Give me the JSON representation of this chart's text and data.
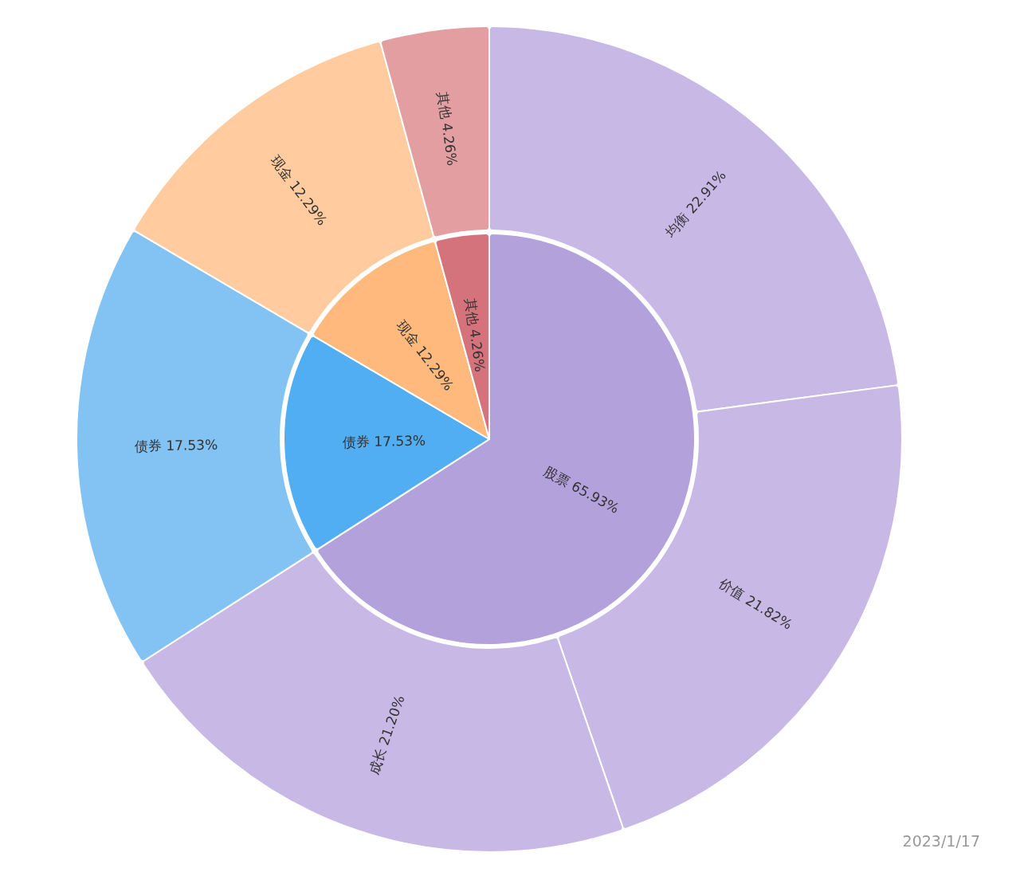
{
  "chart_data": [
    {
      "type": "pie",
      "categories": [
        "股票",
        "债券",
        "现金",
        "其他"
      ],
      "values": [
        65.93,
        17.53,
        12.29,
        4.26
      ],
      "value_labels": [
        "65.93%",
        "17.53%",
        "12.29%",
        "4.26%"
      ],
      "colors": [
        "#b3a1dc",
        "#52aef2",
        "#ffb97d",
        "#d5737d"
      ]
    },
    {
      "type": "donut",
      "categories": [
        "均衡",
        "价值",
        "成长",
        "债券",
        "现金",
        "其他"
      ],
      "values": [
        22.91,
        21.82,
        21.2,
        17.53,
        12.29,
        4.26
      ],
      "value_labels": [
        "22.91%",
        "21.82%",
        "21.20%",
        "17.53%",
        "12.29%",
        "4.26%"
      ],
      "colors": [
        "#c8b8e6",
        "#c8b8e6",
        "#c8b8e6",
        "#83c3f4",
        "#ffcb9f",
        "#e29ea0"
      ],
      "annotations": [
        "2023/1/17"
      ]
    }
  ]
}
